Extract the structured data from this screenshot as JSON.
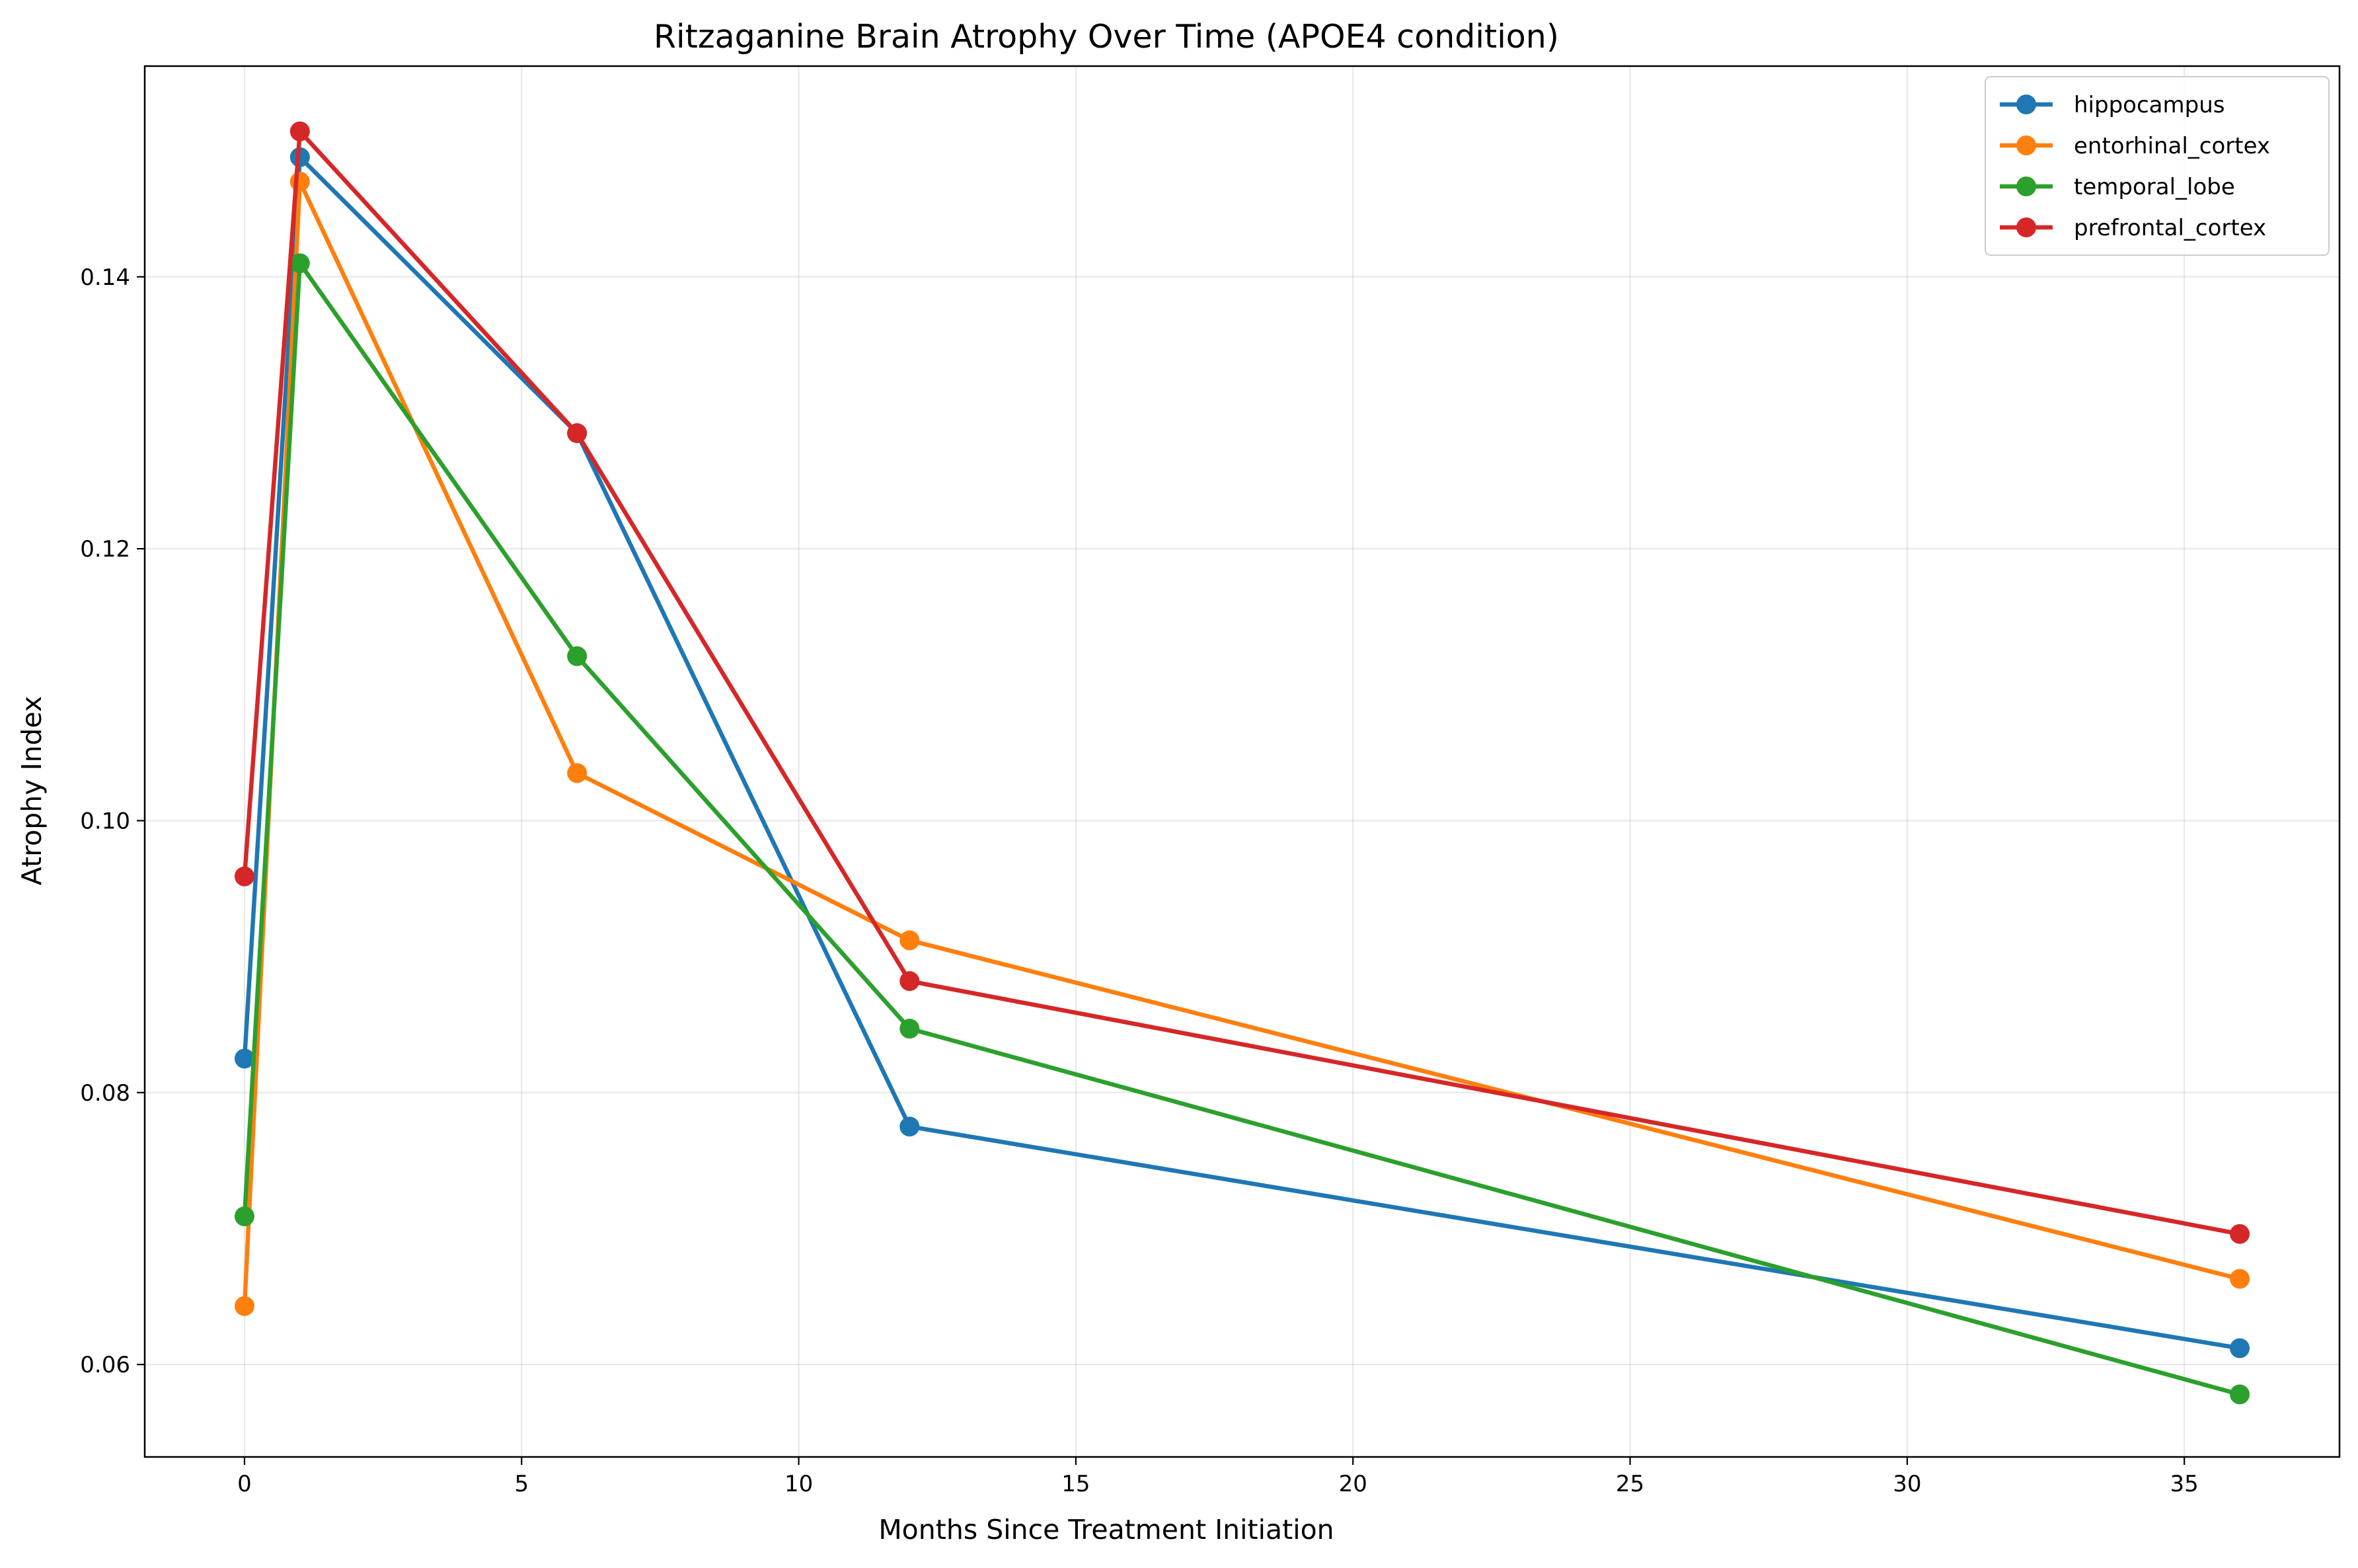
{
  "chart_data": {
    "type": "line",
    "title": "Ritzaganine Brain Atrophy Over Time (APOE4 condition)",
    "xlabel": "Months Since Treatment Initiation",
    "ylabel": "Atrophy Index",
    "xlim": [
      -1.8,
      37.8
    ],
    "ylim": [
      0.0532,
      0.1555
    ],
    "xticks": [
      0,
      5,
      10,
      15,
      20,
      25,
      30,
      35
    ],
    "xtick_labels": [
      "0",
      "5",
      "10",
      "15",
      "20",
      "25",
      "30",
      "35"
    ],
    "yticks": [
      0.06,
      0.08,
      0.1,
      0.12,
      0.14
    ],
    "ytick_labels": [
      "0.06",
      "0.08",
      "0.10",
      "0.12",
      "0.14"
    ],
    "grid": true,
    "legend_position": "top-right",
    "x": [
      0,
      1,
      6,
      12,
      36
    ],
    "series": [
      {
        "name": "hippocampus",
        "color": "#1f77b4",
        "values": [
          0.0825,
          0.1488,
          0.1285,
          0.0775,
          0.0612
        ]
      },
      {
        "name": "entorhinal_cortex",
        "color": "#ff7f0e",
        "values": [
          0.0643,
          0.147,
          0.1035,
          0.0912,
          0.0663
        ]
      },
      {
        "name": "temporal_lobe",
        "color": "#2ca02c",
        "values": [
          0.0709,
          0.141,
          0.1121,
          0.0847,
          0.0578
        ]
      },
      {
        "name": "prefrontal_cortex",
        "color": "#d62728",
        "values": [
          0.0959,
          0.1507,
          0.1285,
          0.0882,
          0.0696
        ]
      }
    ]
  }
}
